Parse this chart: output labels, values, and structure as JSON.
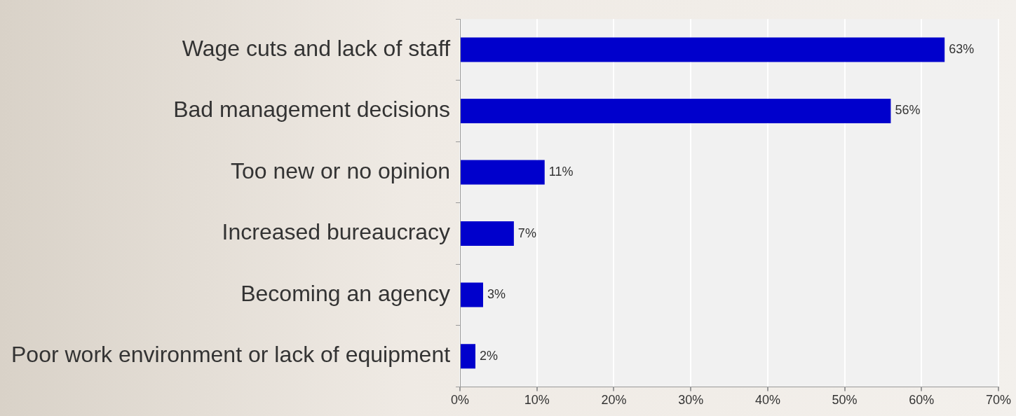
{
  "chart_data": {
    "type": "bar",
    "orientation": "horizontal",
    "categories": [
      "Wage cuts and lack of staff",
      "Bad management decisions",
      "Too new or no opinion",
      "Increased bureaucracy",
      "Becoming an agency",
      "Poor work environment or lack of equipment"
    ],
    "values": [
      63,
      56,
      11,
      7,
      3,
      2
    ],
    "color": "#0000cc",
    "value_labels": [
      "63%",
      "56%",
      "11%",
      "7%",
      "3%",
      "2%"
    ],
    "xlim": [
      0,
      70
    ],
    "xticks": [
      {
        "value": 0,
        "label": "0%"
      },
      {
        "value": 10,
        "label": "10%"
      },
      {
        "value": 20,
        "label": "20%"
      },
      {
        "value": 30,
        "label": "30%"
      },
      {
        "value": 40,
        "label": "40%"
      },
      {
        "value": 50,
        "label": "50%"
      },
      {
        "value": 60,
        "label": "60%"
      },
      {
        "value": 70,
        "label": "70%"
      }
    ],
    "grid": "x",
    "legend": false
  }
}
